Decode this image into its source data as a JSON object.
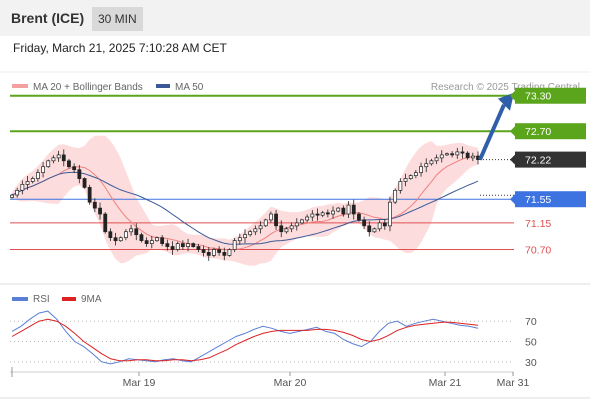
{
  "header": {
    "instrument": "Brent (ICE)",
    "timeframe": "30 MIN",
    "datetime": "Friday, March 21, 2025 7:10:28 AM CET"
  },
  "legend": {
    "ma20": "MA 20 + Bollinger Bands",
    "ma50": "MA 50",
    "credit": "Research © 2025 Trading Central",
    "rsi": "RSI",
    "rsi_ma": "9MA"
  },
  "colors": {
    "green": "#5aa51b",
    "blue": "#3d73e0",
    "red": "#e05050",
    "dark": "#333333",
    "arrow": "#2f5fa8",
    "bollinger": "#fcd6d6",
    "ma20": "#f08080",
    "ma50": "#3b5998"
  },
  "chart_data": [
    {
      "type": "candlestick",
      "title": "",
      "ylim": [
        70.15,
        73.6
      ],
      "x_tick_labels": [
        "Mar 19",
        "Mar 20",
        "Mar 21",
        "Mar 31"
      ],
      "close": [
        71.62,
        71.7,
        71.8,
        71.85,
        71.9,
        72.0,
        72.1,
        72.2,
        72.25,
        72.3,
        72.2,
        72.1,
        72.05,
        71.9,
        71.75,
        71.5,
        71.4,
        71.3,
        71.0,
        70.9,
        70.85,
        70.9,
        71.0,
        71.05,
        70.95,
        70.85,
        70.8,
        70.85,
        70.9,
        70.8,
        70.75,
        70.7,
        70.8,
        70.75,
        70.8,
        70.75,
        70.7,
        70.65,
        70.6,
        70.7,
        70.65,
        70.6,
        70.7,
        70.85,
        70.9,
        70.95,
        71.0,
        71.05,
        71.1,
        71.2,
        71.3,
        71.1,
        71.0,
        71.05,
        71.1,
        71.15,
        71.2,
        71.25,
        71.3,
        71.28,
        71.32,
        71.3,
        71.35,
        71.4,
        71.3,
        71.45,
        71.3,
        71.2,
        71.1,
        71.0,
        71.05,
        71.15,
        71.1,
        71.5,
        71.7,
        71.85,
        71.9,
        71.95,
        72.0,
        72.1,
        72.15,
        72.2,
        72.25,
        72.3,
        72.32,
        72.3,
        72.35,
        72.33,
        72.25,
        72.28,
        72.22
      ],
      "levels": [
        {
          "label": "73.30",
          "value": 73.3,
          "color": "#5aa51b",
          "style": "solid"
        },
        {
          "label": "72.70",
          "value": 72.7,
          "color": "#5aa51b",
          "style": "solid"
        },
        {
          "label": "72.22",
          "value": 72.22,
          "color": "#333333",
          "style": "dotted"
        },
        {
          "label": "71.55",
          "value": 71.55,
          "color": "#3d73e0",
          "style": "solid"
        },
        {
          "label": "71.15",
          "value": 71.15,
          "color": "#e05050",
          "style": "solid"
        },
        {
          "label": "70.70",
          "value": 70.7,
          "color": "#e05050",
          "style": "solid"
        }
      ],
      "projection": {
        "from": 72.22,
        "to": 73.3
      }
    },
    {
      "type": "line",
      "title": "",
      "series": [
        {
          "name": "RSI",
          "values": [
            60,
            65,
            72,
            78,
            80,
            72,
            60,
            50,
            45,
            38,
            30,
            28,
            30,
            33,
            32,
            31,
            30,
            32,
            33,
            31,
            30,
            35,
            40,
            45,
            50,
            55,
            58,
            62,
            65,
            63,
            60,
            58,
            60,
            62,
            64,
            60,
            58,
            52,
            48,
            45,
            50,
            60,
            68,
            70,
            65,
            68,
            70,
            72,
            70,
            68,
            66,
            65,
            63
          ]
        },
        {
          "name": "9MA",
          "values": [
            55,
            60,
            65,
            70,
            72,
            70,
            65,
            58,
            50,
            44,
            38,
            33,
            31,
            31,
            32,
            32,
            31,
            31,
            32,
            32,
            31,
            32,
            34,
            38,
            42,
            47,
            51,
            55,
            58,
            60,
            61,
            61,
            61,
            61,
            62,
            62,
            61,
            59,
            56,
            52,
            50,
            52,
            56,
            61,
            64,
            66,
            67,
            68,
            69,
            69,
            68,
            67,
            66
          ]
        }
      ],
      "y_tick_labels": [
        "70",
        "50",
        "30"
      ],
      "y_ticks": [
        70,
        50,
        30
      ],
      "ylim": [
        20,
        85
      ]
    }
  ]
}
